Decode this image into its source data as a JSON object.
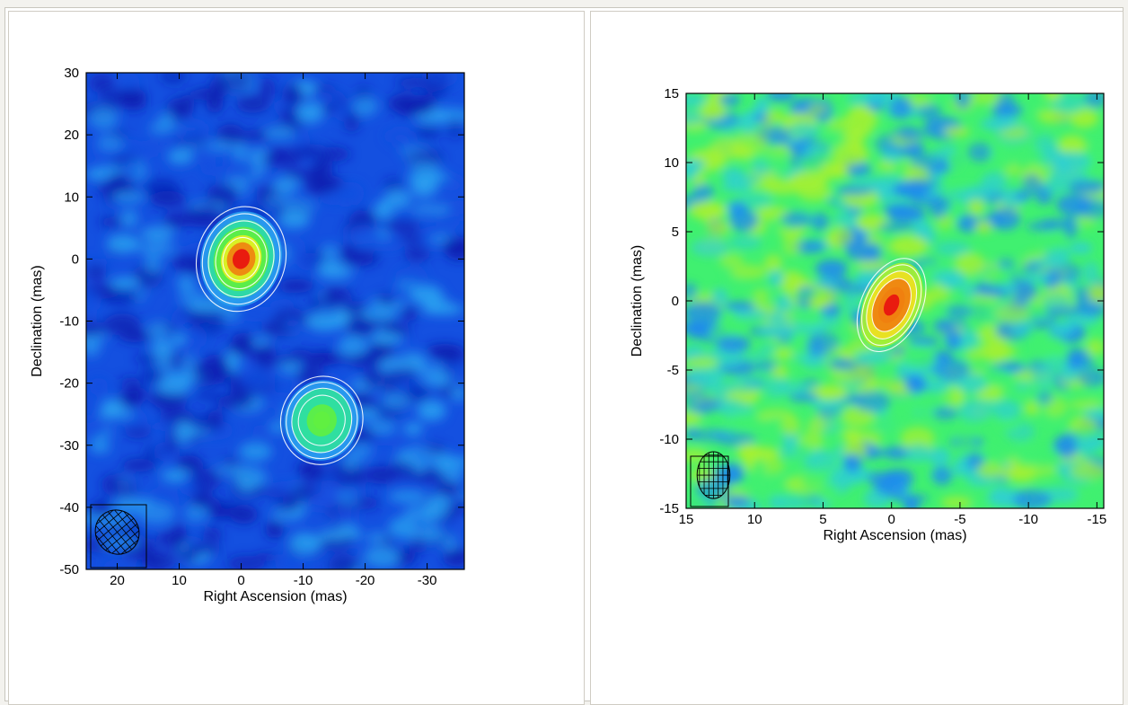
{
  "chart_data": [
    {
      "type": "heatmap",
      "title": "",
      "xlabel": "Right Ascension (mas)",
      "ylabel": "Declination (mas)",
      "xlim": [
        25,
        -36
      ],
      "ylim": [
        -50,
        30
      ],
      "xticks": [
        20,
        10,
        0,
        -10,
        -20,
        -30
      ],
      "yticks": [
        30,
        20,
        10,
        0,
        -10,
        -20,
        -30,
        -40,
        -50
      ],
      "colormap": [
        "#0a1fb0",
        "#1450e0",
        "#2aa0f0",
        "#30e0a0",
        "#60f040",
        "#e8f020",
        "#f08010",
        "#e81010"
      ],
      "sources": [
        {
          "x": 0,
          "y": 0,
          "peak": 1.0,
          "extent": [
            5.2,
            6.2
          ]
        },
        {
          "x": -13,
          "y": -26,
          "peak": 0.55,
          "extent": [
            4.8,
            5.2
          ]
        }
      ],
      "beam": {
        "x": 20,
        "y": -44,
        "major": 5.6,
        "minor": 4.6,
        "pa_deg": -40
      }
    },
    {
      "type": "heatmap",
      "title": "",
      "xlabel": "Right Ascension (mas)",
      "ylabel": "Declination (mas)",
      "xlim": [
        15,
        -15.5
      ],
      "ylim": [
        -15,
        15
      ],
      "xticks": [
        15,
        10,
        5,
        0,
        -5,
        -10,
        -15
      ],
      "yticks": [
        15,
        10,
        5,
        0,
        -5,
        -10,
        -15
      ],
      "colormap": [
        "#1040e0",
        "#1e88f0",
        "#2ed0d0",
        "#40f070",
        "#a8f030",
        "#f0e020",
        "#f08010",
        "#e81010"
      ],
      "sources": [
        {
          "x": 0,
          "y": -0.3,
          "peak": 1.0,
          "extent": [
            1.6,
            2.6
          ]
        }
      ],
      "beam": {
        "x": 13,
        "y": -12.6,
        "major": 2.6,
        "minor": 1.6,
        "pa_deg": 0
      }
    }
  ]
}
